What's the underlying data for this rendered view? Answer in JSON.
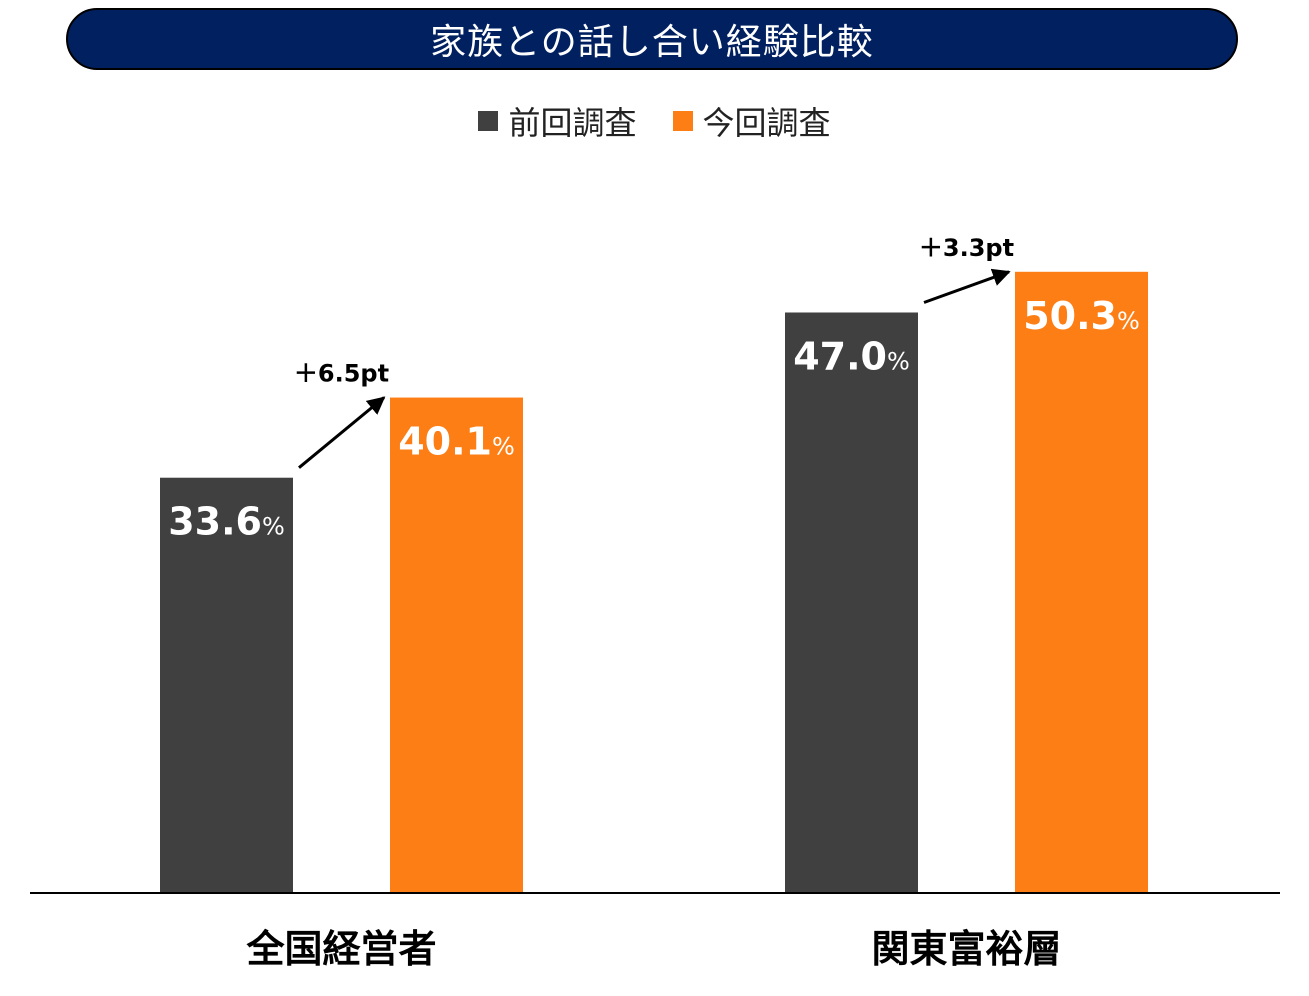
{
  "title": "家族との話し合い経験比較",
  "colors": {
    "title_bg": "#002060",
    "previous": "#404040",
    "current": "#FD7E14",
    "axis": "#000000"
  },
  "chart_data": {
    "type": "bar",
    "title": "家族との話し合い経験比較",
    "categories": [
      "全国経営者",
      "関東富裕層"
    ],
    "series": [
      {
        "name": "前回調査",
        "values": [
          33.6,
          47.0
        ]
      },
      {
        "name": "今回調査",
        "values": [
          40.1,
          50.3
        ]
      }
    ],
    "value_labels": {
      "前回調査": [
        "33.6",
        "47.0"
      ],
      "今回調査": [
        "40.1",
        "50.3"
      ]
    },
    "value_unit": "%",
    "annotations": [
      "＋6.5pt",
      "＋3.3pt"
    ],
    "ylim": [
      0,
      60
    ],
    "grid": false,
    "legend_position": "top-center",
    "xlabel": "",
    "ylabel": ""
  }
}
